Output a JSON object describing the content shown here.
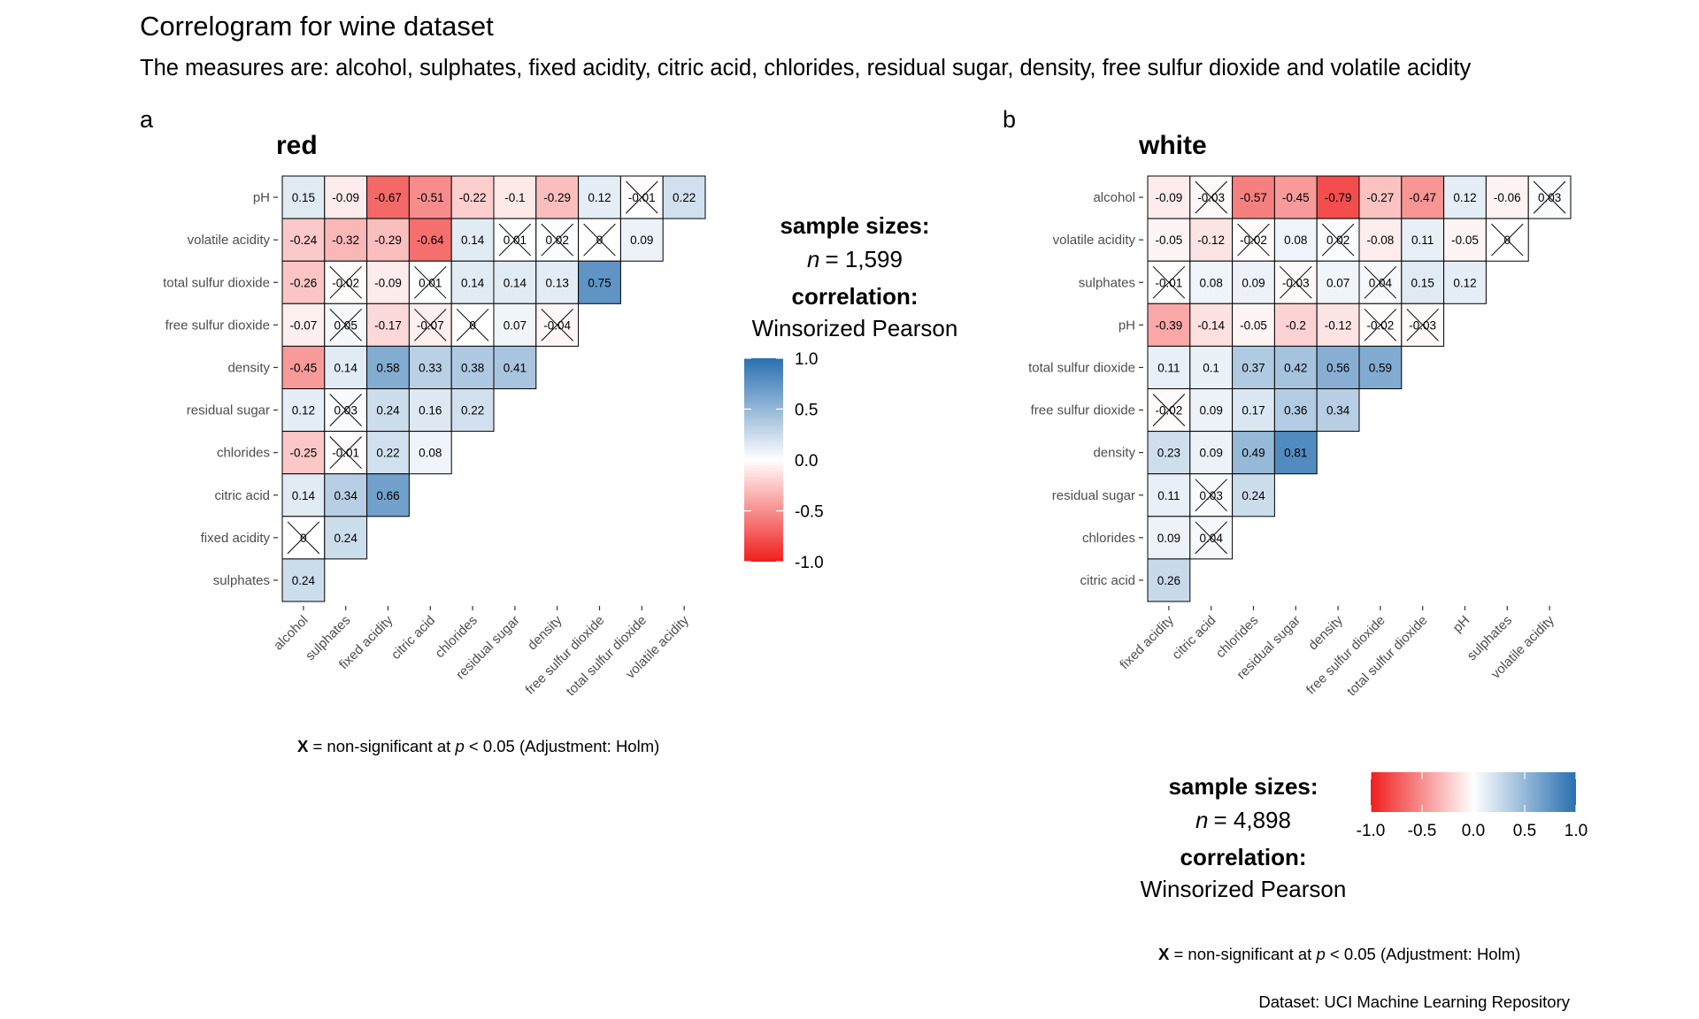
{
  "page": {
    "title": "Correlogram for wine dataset",
    "subtitle": "The measures are: alcohol, sulphates, fixed acidity, citric acid, chlorides, residual sugar, density, free sulfur dioxide and volatile acidity",
    "caption": "Dataset: UCI Machine Learning Repository"
  },
  "colors": {
    "negative": "#f01e1e",
    "zero": "#ffffff",
    "positive": "#2a70b0",
    "cell_border": "#000000"
  },
  "chart_data": [
    {
      "type": "heatmap",
      "tag": "a",
      "title": "red",
      "x": [
        "alcohol",
        "sulphates",
        "fixed acidity",
        "citric acid",
        "chlorides",
        "residual sugar",
        "density",
        "free sulfur dioxide",
        "total sulfur dioxide",
        "volatile acidity"
      ],
      "y": [
        "pH",
        "volatile acidity",
        "total sulfur dioxide",
        "free sulfur dioxide",
        "density",
        "residual sugar",
        "chlorides",
        "citric acid",
        "fixed acidity",
        "sulphates"
      ],
      "values": [
        [
          0.15,
          -0.09,
          -0.67,
          -0.51,
          -0.22,
          -0.1,
          -0.29,
          0.12,
          -0.01,
          0.22
        ],
        [
          -0.24,
          -0.32,
          -0.29,
          -0.64,
          0.14,
          0.01,
          0.02,
          0,
          0.09
        ],
        [
          -0.26,
          -0.02,
          -0.09,
          0.01,
          0.14,
          0.14,
          0.13,
          0.75
        ],
        [
          -0.07,
          0.05,
          -0.17,
          -0.07,
          0,
          0.07,
          -0.04
        ],
        [
          -0.45,
          0.14,
          0.58,
          0.33,
          0.38,
          0.41
        ],
        [
          0.12,
          0.03,
          0.24,
          0.16,
          0.22
        ],
        [
          -0.25,
          -0.01,
          0.22,
          0.08
        ],
        [
          0.14,
          0.34,
          0.66
        ],
        [
          0,
          0.24
        ],
        [
          0.24
        ]
      ],
      "nonsignificant": [
        [
          false,
          false,
          false,
          false,
          false,
          false,
          false,
          false,
          true,
          false
        ],
        [
          false,
          false,
          false,
          false,
          false,
          true,
          true,
          true,
          false
        ],
        [
          false,
          true,
          false,
          true,
          false,
          false,
          false,
          false
        ],
        [
          false,
          true,
          false,
          true,
          true,
          false,
          true
        ],
        [
          false,
          false,
          false,
          false,
          false,
          false
        ],
        [
          false,
          true,
          false,
          false,
          false
        ],
        [
          false,
          true,
          false,
          false
        ],
        [
          false,
          false,
          false
        ],
        [
          true,
          false
        ],
        [
          false
        ]
      ],
      "legend": {
        "sample_sizes_label": "sample sizes:",
        "n_symbol": "n",
        "n_text": "= 1,599",
        "correlation_label": "correlation:",
        "correlation_method": "Winsorized Pearson",
        "ticks": [
          "1.0",
          "0.5",
          "0.0",
          "-0.5",
          "-1.0"
        ],
        "limits": [
          -1,
          1
        ],
        "orientation": "vertical"
      },
      "note": {
        "x": "X",
        "text1": " = non-significant at ",
        "p": "p",
        "text2": " < 0.05 (Adjustment: Holm)"
      }
    },
    {
      "type": "heatmap",
      "tag": "b",
      "title": "white",
      "x": [
        "fixed acidity",
        "citric acid",
        "chlorides",
        "residual sugar",
        "density",
        "free sulfur dioxide",
        "total sulfur dioxide",
        "pH",
        "sulphates",
        "volatile acidity"
      ],
      "y": [
        "alcohol",
        "volatile acidity",
        "sulphates",
        "pH",
        "total sulfur dioxide",
        "free sulfur dioxide",
        "density",
        "residual sugar",
        "chlorides",
        "citric acid"
      ],
      "values": [
        [
          -0.09,
          -0.03,
          -0.57,
          -0.45,
          -0.79,
          -0.27,
          -0.47,
          0.12,
          -0.06,
          0.03
        ],
        [
          -0.05,
          -0.12,
          -0.02,
          0.08,
          0.02,
          -0.08,
          0.11,
          -0.05,
          0
        ],
        [
          -0.01,
          0.08,
          0.09,
          -0.03,
          0.07,
          0.04,
          0.15,
          0.12
        ],
        [
          -0.39,
          -0.14,
          -0.05,
          -0.2,
          -0.12,
          -0.02,
          -0.03
        ],
        [
          0.11,
          0.1,
          0.37,
          0.42,
          0.56,
          0.59
        ],
        [
          -0.02,
          0.09,
          0.17,
          0.36,
          0.34
        ],
        [
          0.23,
          0.09,
          0.49,
          0.81
        ],
        [
          0.11,
          0.03,
          0.24
        ],
        [
          0.09,
          0.04
        ],
        [
          0.26
        ]
      ],
      "nonsignificant": [
        [
          false,
          true,
          false,
          false,
          false,
          false,
          false,
          false,
          false,
          true
        ],
        [
          false,
          false,
          true,
          false,
          true,
          false,
          false,
          false,
          true
        ],
        [
          true,
          false,
          false,
          true,
          false,
          true,
          false,
          false
        ],
        [
          false,
          false,
          false,
          false,
          false,
          true,
          true
        ],
        [
          false,
          false,
          false,
          false,
          false,
          false
        ],
        [
          true,
          false,
          false,
          false,
          false
        ],
        [
          false,
          false,
          false,
          false
        ],
        [
          false,
          true,
          false
        ],
        [
          false,
          true
        ],
        [
          false
        ]
      ],
      "legend": {
        "sample_sizes_label": "sample sizes:",
        "n_symbol": "n",
        "n_text": "= 4,898",
        "correlation_label": "correlation:",
        "correlation_method": "Winsorized Pearson",
        "ticks": [
          "-1.0",
          "-0.5",
          "0.0",
          "0.5",
          "1.0"
        ],
        "limits": [
          -1,
          1
        ],
        "orientation": "horizontal"
      },
      "note": {
        "x": "X",
        "text1": " = non-significant at ",
        "p": "p",
        "text2": " < 0.05 (Adjustment: Holm)"
      }
    }
  ]
}
